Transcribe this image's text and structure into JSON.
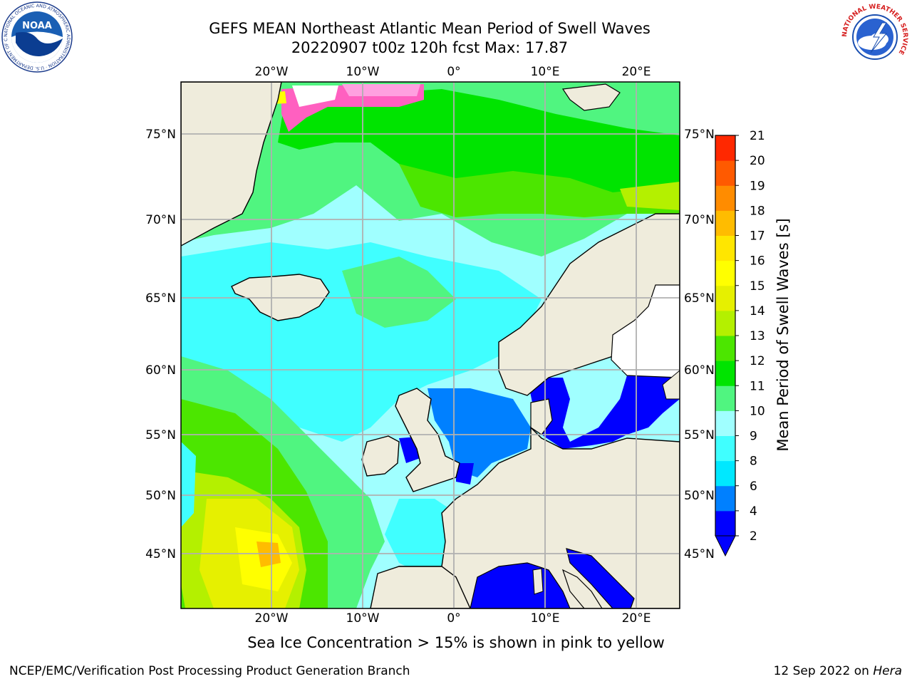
{
  "title_line1": "GEFS MEAN Northeast Atlantic Mean Period of Swell Waves",
  "title_line2": "20220907 t00z 120h fcst   Max: 17.87",
  "logos": {
    "noaa_text": "NOAA",
    "noaa_ring": "NATIONAL OCEANIC AND ATMOSPHERIC ADMINISTRATION · U.S. DEPARTMENT OF COMMERCE",
    "nws_ring": "NATIONAL WEATHER SERVICE"
  },
  "map": {
    "lon_ticks": [
      "20°W",
      "10°W",
      "0°",
      "10°E",
      "20°E"
    ],
    "lat_ticks": [
      "75°N",
      "70°N",
      "65°N",
      "60°N",
      "55°N",
      "50°N",
      "45°N"
    ],
    "colors": {
      "land": "#efecdc",
      "grid": "#b0b0b0",
      "coast": "#000000"
    }
  },
  "colorbar": {
    "label": "Mean Period of Swell Waves [s]",
    "ticks": [
      "2",
      "4",
      "6",
      "8",
      "9",
      "10",
      "11",
      "12",
      "13",
      "14",
      "15",
      "16",
      "17",
      "18",
      "19",
      "20",
      "21"
    ],
    "colors": [
      "#0000ff",
      "#0080ff",
      "#00e8ff",
      "#40ffff",
      "#a0ffff",
      "#50f580",
      "#00e400",
      "#4ce600",
      "#b4f000",
      "#e6f000",
      "#ffff00",
      "#ffe600",
      "#ffbc00",
      "#ff8c00",
      "#ff5a00",
      "#ff2800"
    ],
    "extend_color": "#0000ff"
  },
  "caption": "Sea Ice Concentration > 15% is shown in pink to yellow",
  "footer_left": "NCEP/EMC/Verification Post Processing Product Generation Branch",
  "footer_date": "12 Sep 2022 on",
  "footer_host": "Hera"
}
